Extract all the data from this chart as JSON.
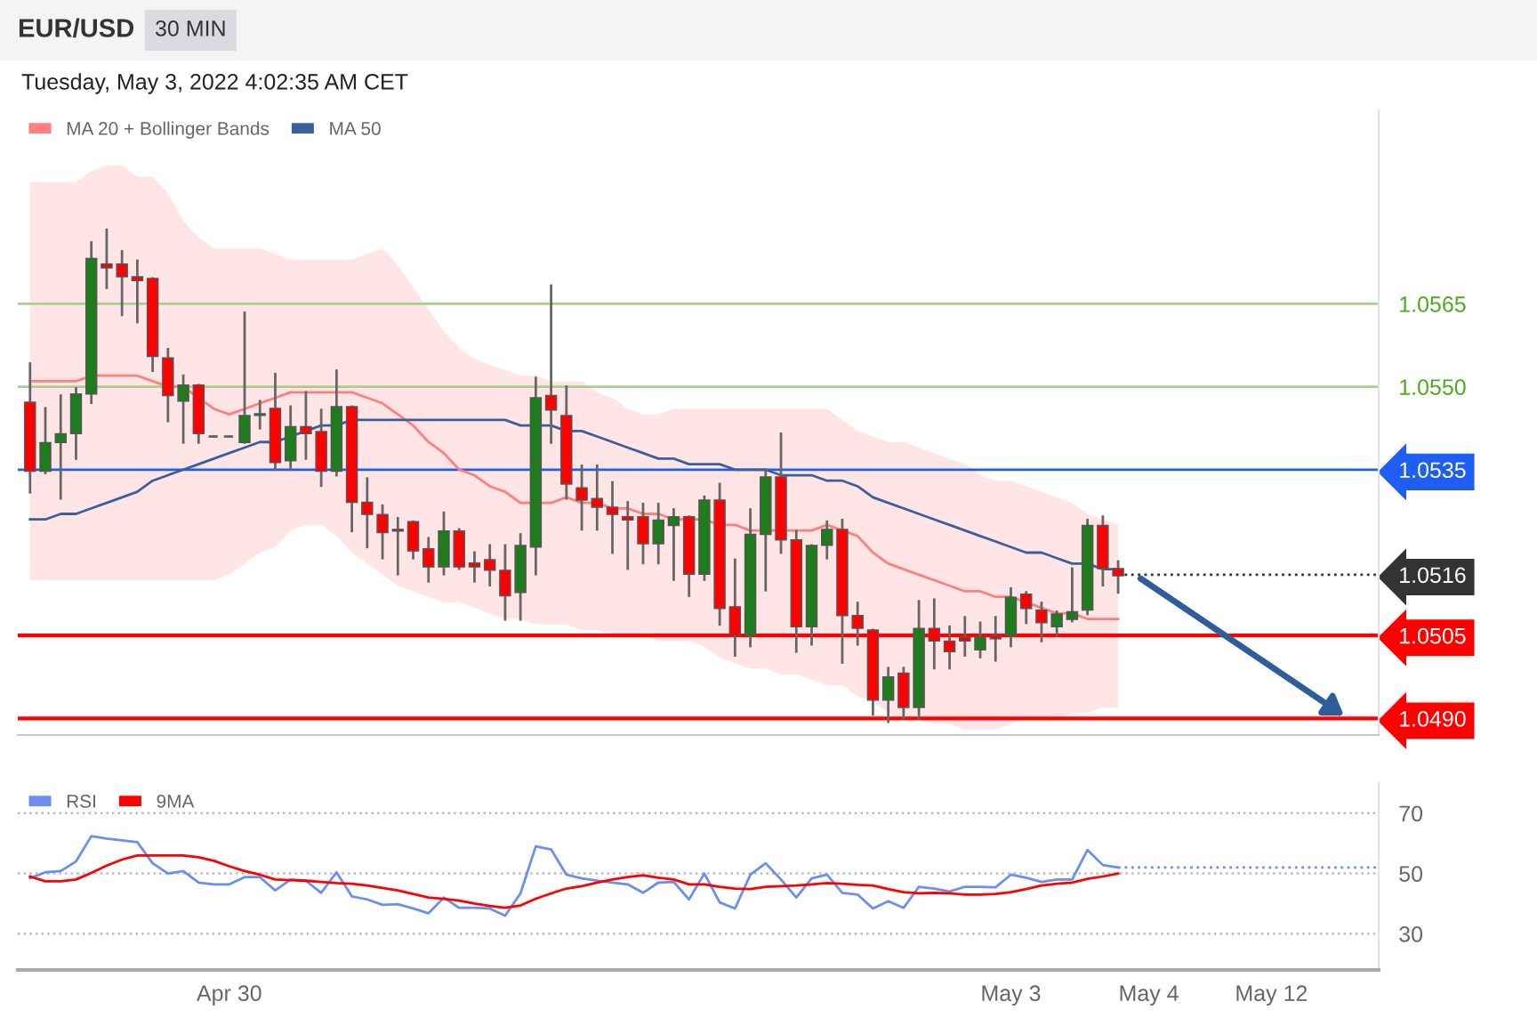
{
  "chart_data": [
    {
      "type": "candlestick",
      "title": "EUR/USD",
      "subtitle": "Tuesday, May 3, 2022 4:02:35 AM CET",
      "annotations": [
        "30 MIN"
      ],
      "categories": [
        null,
        null,
        null,
        null,
        null,
        null,
        null,
        null,
        null,
        null,
        null,
        null,
        null,
        null,
        null,
        null,
        null,
        null,
        null,
        null,
        null,
        null,
        null,
        null,
        null,
        null,
        null,
        null,
        null,
        null,
        null,
        null,
        null,
        null,
        null,
        null,
        null,
        null,
        null,
        null,
        null,
        null,
        null,
        null,
        null,
        null,
        null,
        null,
        null,
        null,
        null,
        null,
        null,
        null,
        null,
        null,
        null,
        null,
        null,
        null,
        null,
        null,
        null,
        null,
        null,
        null,
        null,
        null,
        null,
        null,
        null,
        null,
        null,
        null,
        null,
        null,
        null,
        null,
        null,
        null,
        null,
        null,
        null,
        null,
        null,
        null,
        null,
        null,
        null
      ],
      "ohlc": [
        [
          1.05472,
          1.05542,
          1.05309,
          1.05347
        ],
        [
          1.05347,
          1.05461,
          1.05344,
          1.05399
        ],
        [
          1.05399,
          1.05484,
          1.05298,
          1.05415
        ],
        [
          1.05415,
          1.05497,
          1.0537,
          1.05487
        ],
        [
          1.05487,
          1.05761,
          1.05471,
          1.05732
        ],
        [
          1.05722,
          1.05784,
          1.05679,
          1.05715
        ],
        [
          1.05722,
          1.05745,
          1.0563,
          1.05699
        ],
        [
          1.05699,
          1.05728,
          1.05617,
          1.05692
        ],
        [
          1.05696,
          1.05696,
          1.05529,
          1.05555
        ],
        [
          1.05552,
          1.05568,
          1.05438,
          1.05484
        ],
        [
          1.05474,
          1.0552,
          1.05399,
          1.05503
        ],
        [
          1.05503,
          1.05503,
          1.05399,
          1.05415
        ],
        [
          1.0541,
          1.0541,
          1.0541,
          1.0541
        ],
        [
          1.0541,
          1.0541,
          1.0541,
          1.0541
        ],
        [
          1.05399,
          1.05634,
          1.05399,
          1.05448
        ],
        [
          1.05448,
          1.05474,
          1.05425,
          1.05451
        ],
        [
          1.05461,
          1.05523,
          1.0535,
          1.05363
        ],
        [
          1.05366,
          1.05464,
          1.0535,
          1.05428
        ],
        [
          1.05428,
          1.0549,
          1.0537,
          1.05415
        ],
        [
          1.05419,
          1.05458,
          1.05321,
          1.05347
        ],
        [
          1.05347,
          1.05529,
          1.0534,
          1.05464
        ],
        [
          1.05464,
          1.05464,
          1.05239,
          1.05291
        ],
        [
          1.05291,
          1.05334,
          1.0521,
          1.05269
        ],
        [
          1.05269,
          1.05285,
          1.0519,
          1.05236
        ],
        [
          1.05242,
          1.05262,
          1.05161,
          1.05239
        ],
        [
          1.05256,
          1.05256,
          1.0519,
          1.05203
        ],
        [
          1.05207,
          1.05226,
          1.05148,
          1.05174
        ],
        [
          1.05174,
          1.05272,
          1.05161,
          1.05239
        ],
        [
          1.05239,
          1.05242,
          1.05171,
          1.05174
        ],
        [
          1.05181,
          1.052,
          1.05148,
          1.05174
        ],
        [
          1.05187,
          1.05213,
          1.05141,
          1.05168
        ],
        [
          1.05168,
          1.05213,
          1.05079,
          1.05122
        ],
        [
          1.05128,
          1.05233,
          1.05079,
          1.05213
        ],
        [
          1.0521,
          1.05516,
          1.05161,
          1.0548
        ],
        [
          1.05484,
          1.05683,
          1.05399,
          1.05458
        ],
        [
          1.05448,
          1.055,
          1.05298,
          1.05324
        ],
        [
          1.05317,
          1.05357,
          1.05242,
          1.05295
        ],
        [
          1.05298,
          1.05357,
          1.05242,
          1.05282
        ],
        [
          1.05282,
          1.05327,
          1.052,
          1.05269
        ],
        [
          1.05265,
          1.05291,
          1.05171,
          1.05259
        ],
        [
          1.05265,
          1.05288,
          1.05181,
          1.05216
        ],
        [
          1.05216,
          1.05288,
          1.05181,
          1.05259
        ],
        [
          1.05249,
          1.05278,
          1.05151,
          1.05265
        ],
        [
          1.05265,
          1.05265,
          1.05122,
          1.05161
        ],
        [
          1.05161,
          1.05301,
          1.05151,
          1.05295
        ],
        [
          1.05295,
          1.05324,
          1.0507,
          1.05099
        ],
        [
          1.05102,
          1.05187,
          1.05014,
          1.0505
        ],
        [
          1.0505,
          1.05278,
          1.05031,
          1.05233
        ],
        [
          1.05233,
          1.0535,
          1.05132,
          1.05337
        ],
        [
          1.05337,
          1.05415,
          1.052,
          1.05223
        ],
        [
          1.05223,
          1.05239,
          1.05021,
          1.05066
        ],
        [
          1.05066,
          1.05213,
          1.05034,
          1.05213
        ],
        [
          1.05213,
          1.05256,
          1.0519,
          1.05242
        ],
        [
          1.05242,
          1.05259,
          1.05001,
          1.05086
        ],
        [
          1.05086,
          1.05109,
          1.05034,
          1.05063
        ],
        [
          1.0506,
          1.0506,
          1.04907,
          1.04933
        ],
        [
          1.04933,
          1.04991,
          1.04894,
          1.04975
        ],
        [
          1.04982,
          1.04991,
          1.049,
          1.0492
        ],
        [
          1.0492,
          1.05112,
          1.049,
          1.05063
        ],
        [
          1.05063,
          1.05115,
          1.04991,
          1.0504
        ],
        [
          1.0504,
          1.05066,
          1.04991,
          1.05021
        ],
        [
          1.05047,
          1.05083,
          1.05014,
          1.0504
        ],
        [
          1.05024,
          1.05073,
          1.05011,
          1.05047
        ],
        [
          1.0505,
          1.05083,
          1.05005,
          1.05044
        ],
        [
          1.0505,
          1.05135,
          1.05031,
          1.05119
        ],
        [
          1.05125,
          1.05128,
          1.05073,
          1.05099
        ],
        [
          1.05096,
          1.05109,
          1.0504,
          1.05073
        ],
        [
          1.05066,
          1.05093,
          1.0505,
          1.05089
        ],
        [
          1.05079,
          1.05171,
          1.05076,
          1.05093
        ],
        [
          1.05096,
          1.05259,
          1.05089,
          1.05249
        ],
        [
          1.05249,
          1.05265,
          1.05141,
          1.05171
        ],
        [
          1.05171,
          1.05184,
          1.05128,
          1.05158
        ],
        null,
        null,
        null,
        null,
        null,
        null,
        null,
        null,
        null,
        null,
        null,
        null,
        null,
        null,
        null,
        null,
        null
      ],
      "series": [
        {
          "type": "line",
          "name": "MA 20 + Bollinger Bands",
          "color": "#ff7f7f",
          "values": [
            1.0551,
            1.0551,
            1.0551,
            1.0551,
            1.0552,
            1.0552,
            1.0552,
            1.0552,
            1.0551,
            1.055,
            1.055,
            1.0548,
            1.0546,
            1.0545,
            1.0546,
            1.0547,
            1.0548,
            1.0549,
            1.0549,
            1.0549,
            1.0549,
            1.0549,
            1.0548,
            1.0547,
            1.0545,
            1.0543,
            1.054,
            1.0538,
            1.0535,
            1.0534,
            1.0532,
            1.0531,
            1.0529,
            1.0529,
            1.0529,
            1.053,
            1.0529,
            1.0529,
            1.0528,
            1.0528,
            1.0527,
            1.0527,
            1.0526,
            1.0526,
            1.0526,
            1.0525,
            1.0525,
            1.0524,
            1.0524,
            1.0524,
            1.0524,
            1.0524,
            1.0525,
            1.0524,
            1.0523,
            1.052,
            1.0518,
            1.0517,
            1.0516,
            1.0515,
            1.0514,
            1.0513,
            1.0513,
            1.0512,
            1.0512,
            1.0511,
            1.051,
            1.0509,
            1.0509,
            1.0508,
            1.0508,
            1.0508,
            null,
            null,
            null,
            null,
            null,
            null,
            null,
            null,
            null,
            null,
            null,
            null,
            null,
            null,
            null,
            null,
            null
          ],
          "upper": [
            1.0587,
            1.0587,
            1.0587,
            1.0587,
            1.0589,
            1.059,
            1.059,
            1.0588,
            1.0588,
            1.0585,
            1.058,
            1.0577,
            1.0575,
            1.0575,
            1.0575,
            1.0575,
            1.0574,
            1.0573,
            1.0573,
            1.0573,
            1.0573,
            1.0573,
            1.0574,
            1.0575,
            1.0572,
            1.0568,
            1.0564,
            1.056,
            1.0557,
            1.0555,
            1.0554,
            1.0553,
            1.0552,
            1.0552,
            1.0551,
            1.0551,
            1.0551,
            1.0549,
            1.0548,
            1.0546,
            1.0545,
            1.0545,
            1.0546,
            1.0546,
            1.0546,
            1.0546,
            1.0546,
            1.0546,
            1.0546,
            1.0546,
            1.0546,
            1.0546,
            1.0546,
            1.0544,
            1.0542,
            1.0541,
            1.054,
            1.054,
            1.0539,
            1.0538,
            1.0537,
            1.0536,
            1.0534,
            1.0533,
            1.0533,
            1.0532,
            1.0531,
            1.053,
            1.0529,
            1.0527,
            1.0526,
            1.0525,
            null,
            null,
            null,
            null,
            null,
            null,
            null,
            null,
            null,
            null,
            null,
            null,
            null,
            null,
            null,
            null,
            null
          ],
          "lower": [
            1.0515,
            1.0515,
            1.0515,
            1.0515,
            1.0515,
            1.0515,
            1.0515,
            1.0515,
            1.0515,
            1.0515,
            1.0515,
            1.0515,
            1.0515,
            1.0516,
            1.0518,
            1.052,
            1.0521,
            1.0524,
            1.0525,
            1.0525,
            1.0523,
            1.052,
            1.0518,
            1.0516,
            1.0514,
            1.0513,
            1.0512,
            1.0511,
            1.0511,
            1.051,
            1.0509,
            1.0508,
            1.0508,
            1.0507,
            1.0507,
            1.0507,
            1.0506,
            1.0506,
            1.0505,
            1.0505,
            1.0505,
            1.0504,
            1.0504,
            1.0504,
            1.0503,
            1.0501,
            1.05,
            1.0499,
            1.0499,
            1.0498,
            1.0498,
            1.0497,
            1.0496,
            1.0496,
            1.0494,
            1.0493,
            1.0491,
            1.049,
            1.049,
            1.0489,
            1.0489,
            1.0488,
            1.0488,
            1.0488,
            1.0489,
            1.049,
            1.049,
            1.049,
            1.0491,
            1.0491,
            1.0492,
            1.0492,
            null,
            null,
            null,
            null,
            null,
            null,
            null,
            null,
            null,
            null,
            null,
            null,
            null,
            null,
            null,
            null,
            null
          ]
        },
        {
          "type": "line",
          "name": "MA 50",
          "color": "#3a5f9c",
          "values": [
            1.0526,
            1.0526,
            1.0527,
            1.0527,
            1.0528,
            1.0529,
            1.053,
            1.0531,
            1.0533,
            1.0534,
            1.0535,
            1.0536,
            1.0537,
            1.0538,
            1.0539,
            1.054,
            1.054,
            1.0541,
            1.0542,
            1.0543,
            1.0543,
            1.0544,
            1.0544,
            1.0544,
            1.0544,
            1.0544,
            1.0544,
            1.0544,
            1.0544,
            1.0544,
            1.0544,
            1.0544,
            1.0543,
            1.0543,
            1.0543,
            1.0542,
            1.0542,
            1.0541,
            1.054,
            1.0539,
            1.0538,
            1.0537,
            1.0537,
            1.0536,
            1.0536,
            1.0536,
            1.0535,
            1.0535,
            1.0535,
            1.0534,
            1.0534,
            1.0534,
            1.0533,
            1.0533,
            1.0532,
            1.053,
            1.0529,
            1.0528,
            1.0527,
            1.0526,
            1.0525,
            1.0524,
            1.0523,
            1.0522,
            1.0521,
            1.052,
            1.052,
            1.0519,
            1.0518,
            1.0518,
            1.0517,
            1.0517,
            null,
            null,
            null,
            null,
            null,
            null,
            null,
            null,
            null,
            null,
            null,
            null,
            null,
            null,
            null,
            null,
            null
          ]
        }
      ],
      "colors": [
        "#ff0000",
        "#1e7b1e",
        "#1e7b1e",
        "#1e7b1e",
        "#1e7b1e",
        "#ff0000",
        "#ff0000",
        "#ff0000",
        "#ff0000",
        "#ff0000",
        "#1e7b1e",
        "#ff0000",
        "#666666",
        "#666666",
        "#1e7b1e",
        "#1e7b1e",
        "#ff0000",
        "#1e7b1e",
        "#ff0000",
        "#ff0000",
        "#1e7b1e",
        "#ff0000",
        "#ff0000",
        "#ff0000",
        "#ff0000",
        "#ff0000",
        "#ff0000",
        "#1e7b1e",
        "#ff0000",
        "#ff0000",
        "#ff0000",
        "#ff0000",
        "#1e7b1e",
        "#1e7b1e",
        "#ff0000",
        "#ff0000",
        "#ff0000",
        "#ff0000",
        "#ff0000",
        "#ff0000",
        "#ff0000",
        "#1e7b1e",
        "#1e7b1e",
        "#ff0000",
        "#1e7b1e",
        "#ff0000",
        "#ff0000",
        "#1e7b1e",
        "#1e7b1e",
        "#ff0000",
        "#ff0000",
        "#1e7b1e",
        "#1e7b1e",
        "#ff0000",
        "#ff0000",
        "#ff0000",
        "#1e7b1e",
        "#ff0000",
        "#1e7b1e",
        "#ff0000",
        "#ff0000",
        "#ff0000",
        "#1e7b1e",
        "#ff0000",
        "#1e7b1e",
        "#ff0000",
        "#ff0000",
        "#1e7b1e",
        "#1e7b1e",
        "#1e7b1e",
        "#ff0000",
        "#ff0000",
        null,
        null,
        null,
        null,
        null,
        null,
        null,
        null,
        null,
        null,
        null,
        null,
        null,
        null,
        null,
        null,
        null
      ],
      "ylim": [
        1.0487,
        1.06
      ],
      "yticks": [
        {
          "value": 1.0565,
          "label": "1.0565"
        },
        {
          "value": 1.055,
          "label": "1.0550"
        },
        {
          "value": 1.0535,
          "label": "1.0535"
        },
        {
          "value": 1.0516,
          "label": "1.0516"
        },
        {
          "value": 1.0505,
          "label": "1.0505"
        },
        {
          "value": 1.049,
          "label": "1.0490"
        }
      ],
      "ref_lines": [
        {
          "axis": "y",
          "value": 1.0565,
          "color": "#a9cf8f",
          "line_style": "solid"
        },
        {
          "axis": "y",
          "value": 1.055,
          "color": "#a9cf8f",
          "line_style": "solid"
        },
        {
          "axis": "y",
          "value": 1.0535,
          "color": "#1e5ef5",
          "line_style": "solid"
        },
        {
          "axis": "y",
          "value": 1.0516,
          "color": "#333333",
          "line_style": "dotted"
        },
        {
          "axis": "y",
          "value": 1.0505,
          "color": "#ff0000",
          "line_style": "solid"
        },
        {
          "axis": "y",
          "value": 1.049,
          "color": "#ff0000",
          "line_style": "solid"
        }
      ],
      "grid": false,
      "legend": "top left",
      "tick_labels": "y"
    },
    {
      "type": "line",
      "categories": [
        null,
        null,
        null,
        null,
        null,
        null,
        null,
        null,
        null,
        null,
        null,
        null,
        null,
        "Apr 30",
        null,
        null,
        null,
        null,
        null,
        null,
        null,
        null,
        null,
        null,
        null,
        null,
        null,
        null,
        null,
        null,
        null,
        null,
        null,
        null,
        null,
        null,
        null,
        null,
        null,
        null,
        null,
        null,
        null,
        null,
        null,
        null,
        null,
        null,
        null,
        null,
        null,
        null,
        null,
        null,
        null,
        null,
        null,
        null,
        null,
        null,
        null,
        null,
        null,
        null,
        "May 3",
        null,
        null,
        null,
        null,
        null,
        null,
        null,
        null,
        "May 4",
        null,
        null,
        null,
        null,
        null,
        null,
        null,
        "May 12",
        null,
        null,
        null,
        null,
        null,
        null,
        null
      ],
      "series": [
        {
          "name": "RSI",
          "color": "#6b8ef0",
          "values": [
            48.4,
            50.4,
            50.8,
            54,
            62.4,
            61.6,
            61,
            60.4,
            53.4,
            50,
            50.8,
            47,
            46.4,
            46.4,
            48.8,
            48.8,
            44.4,
            48,
            47.6,
            43.6,
            50.4,
            42.4,
            41.4,
            39.6,
            39.8,
            38.4,
            36.8,
            42,
            38.6,
            38.6,
            38.4,
            36,
            43.4,
            59,
            58,
            49.6,
            48.4,
            47.6,
            47,
            46.4,
            43.6,
            47,
            47.2,
            41.4,
            50,
            40.4,
            38.4,
            49.6,
            53.4,
            48,
            42,
            48.4,
            49.6,
            43.6,
            43,
            38.4,
            40.8,
            38.6,
            45.6,
            45,
            44,
            45.6,
            45.6,
            45.4,
            49.6,
            48.6,
            47.2,
            48,
            48,
            57.8,
            52.8,
            52,
            null,
            null,
            null,
            null,
            null,
            null,
            null,
            null,
            null,
            null,
            null,
            null,
            null,
            null,
            null,
            null,
            null
          ]
        },
        {
          "name": "9MA",
          "color": "#ff0000",
          "values": [
            49,
            47.4,
            47.4,
            48,
            50.2,
            52.6,
            54.6,
            56,
            56,
            56,
            56,
            55.4,
            54.2,
            52.4,
            50.8,
            49.6,
            48,
            47.8,
            47.6,
            47.2,
            46.8,
            46.6,
            46,
            45.2,
            44.4,
            43.2,
            42,
            41.6,
            41,
            40,
            39.2,
            38.6,
            39.4,
            41.6,
            43.4,
            45,
            45.8,
            47,
            48,
            48.8,
            49.4,
            48.6,
            48,
            46.4,
            46.4,
            45.6,
            45,
            44.8,
            45.6,
            45.8,
            46,
            46.4,
            46.8,
            46.6,
            46.2,
            46,
            44.8,
            43.8,
            43.4,
            43.6,
            43.4,
            43,
            43,
            43.2,
            43.8,
            44.8,
            46,
            46.6,
            47,
            48.2,
            49,
            50,
            null,
            null,
            null,
            null,
            null,
            null,
            null,
            null,
            null,
            null,
            null,
            null,
            null,
            null,
            null,
            null,
            null
          ]
        }
      ],
      "ylim": [
        18,
        80
      ],
      "yticks": [
        30,
        50,
        70
      ],
      "ref_lines": [
        {
          "axis": "y",
          "value": 52,
          "color": "#6b8ef0",
          "line_style": "dotted"
        }
      ],
      "grid": "y",
      "legend": "top left"
    }
  ]
}
